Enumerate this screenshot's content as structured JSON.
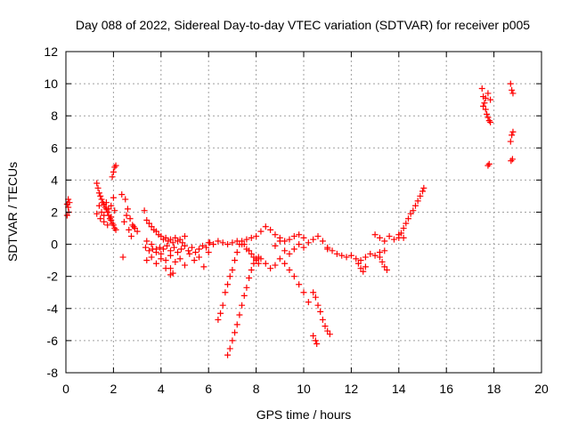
{
  "chart_data": {
    "type": "scatter",
    "title": "Day 088 of 2022, Sidereal Day-to-day VTEC variation (SDTVAR) for receiver p005",
    "xlabel": "GPS time / hours",
    "ylabel": "SDTVAR / TECUs",
    "xlim": [
      0,
      20
    ],
    "ylim": [
      -8,
      12
    ],
    "xticks": [
      0,
      2,
      4,
      6,
      8,
      10,
      12,
      14,
      16,
      18,
      20
    ],
    "yticks": [
      -8,
      -6,
      -4,
      -2,
      0,
      2,
      4,
      6,
      8,
      10,
      12
    ],
    "grid": true,
    "marker": "+",
    "color": "#ff0000",
    "series": [
      {
        "name": "SDTVAR",
        "x": [
          0.05,
          0.1,
          0.15,
          0.05,
          0.1,
          0.12,
          1.3,
          1.35,
          1.4,
          1.45,
          1.5,
          1.55,
          1.6,
          1.65,
          1.7,
          1.75,
          1.8,
          1.85,
          1.9,
          1.95,
          2.0,
          2.05,
          2.1,
          1.4,
          1.5,
          1.6,
          1.7,
          1.8,
          1.9,
          2.0,
          1.3,
          1.45,
          1.6,
          1.75,
          1.9,
          2.05,
          1.95,
          2.0,
          2.05,
          2.1,
          2.35,
          2.5,
          2.6,
          2.7,
          2.8,
          2.9,
          3.0,
          2.45,
          2.55,
          2.65,
          2.75,
          2.85,
          2.4,
          3.3,
          3.4,
          3.5,
          3.6,
          3.7,
          3.8,
          3.9,
          4.0,
          4.1,
          4.2,
          4.3,
          4.4,
          4.5,
          4.6,
          4.7,
          4.8,
          4.9,
          5.0,
          3.35,
          3.5,
          3.65,
          3.8,
          3.95,
          4.1,
          4.25,
          4.4,
          4.55,
          4.7,
          4.85,
          5.0,
          5.15,
          5.3,
          5.45,
          5.6,
          5.75,
          5.9,
          6.05,
          3.4,
          3.6,
          3.8,
          4.0,
          4.2,
          4.4,
          4.6,
          4.8,
          5.0,
          5.2,
          5.4,
          5.6,
          5.8,
          6.0,
          3.4,
          3.6,
          3.8,
          4.0,
          4.2,
          4.4,
          4.5,
          4.4,
          6.0,
          6.2,
          6.4,
          6.6,
          6.8,
          7.0,
          7.2,
          7.4,
          7.6,
          7.8,
          8.0,
          8.2,
          8.4,
          8.6,
          8.8,
          9.0,
          9.2,
          9.4,
          9.6,
          9.8,
          10.0,
          10.2,
          10.4,
          10.6,
          10.8,
          11.0,
          6.4,
          6.5,
          6.6,
          6.7,
          6.8,
          6.9,
          7.0,
          7.1,
          7.2,
          7.3,
          7.4,
          7.5,
          7.6,
          7.7,
          7.8,
          7.9,
          8.0,
          8.1,
          6.8,
          6.9,
          7.0,
          7.1,
          7.2,
          7.3,
          7.4,
          7.5,
          7.6,
          7.7,
          7.8,
          7.9,
          8.0,
          8.1,
          8.2,
          8.4,
          8.6,
          8.8,
          9.0,
          9.2,
          9.4,
          9.6,
          9.8,
          10.0,
          10.2,
          8.8,
          9.0,
          9.2,
          9.4,
          9.6,
          9.8,
          10.0,
          10.4,
          10.5,
          10.6,
          10.7,
          10.8,
          10.9,
          11.0,
          11.1,
          10.4,
          10.5,
          10.55,
          11.0,
          11.2,
          11.4,
          11.6,
          11.8,
          12.0,
          12.2,
          12.4,
          12.6,
          12.8,
          13.0,
          13.2,
          13.4,
          12.3,
          12.4,
          12.5,
          12.6,
          13.0,
          13.2,
          13.4,
          13.6,
          13.8,
          14.0,
          14.2,
          13.2,
          13.3,
          13.4,
          13.5,
          14.0,
          14.1,
          14.2,
          14.3,
          14.4,
          14.5,
          14.6,
          14.7,
          14.8,
          14.9,
          15.0,
          15.05,
          17.5,
          17.55,
          17.6,
          17.65,
          17.7,
          17.75,
          17.8,
          17.85,
          17.55,
          17.65,
          17.75,
          17.85,
          17.8,
          17.75,
          18.7,
          18.75,
          18.8,
          18.7,
          18.75,
          18.8,
          18.72,
          18.78
        ],
        "y": [
          2.5,
          2.8,
          2.6,
          1.8,
          2.3,
          2.0,
          3.8,
          3.5,
          3.2,
          3.0,
          2.8,
          2.6,
          2.5,
          2.3,
          2.2,
          2.0,
          1.8,
          1.6,
          1.5,
          1.3,
          1.2,
          1.0,
          0.9,
          2.4,
          2.0,
          1.8,
          2.6,
          2.2,
          1.7,
          2.9,
          1.9,
          1.6,
          1.4,
          1.2,
          2.4,
          2.1,
          4.2,
          4.5,
          4.8,
          4.9,
          3.1,
          2.8,
          2.2,
          1.6,
          1.2,
          1.0,
          0.8,
          1.4,
          1.8,
          0.9,
          0.5,
          1.1,
          -0.8,
          2.1,
          1.5,
          1.3,
          1.1,
          0.9,
          0.8,
          0.6,
          0.5,
          0.3,
          0.4,
          0.2,
          0.3,
          0.1,
          0.4,
          0.2,
          0.3,
          0.1,
          0.5,
          -0.2,
          -0.4,
          -0.3,
          -0.5,
          -0.2,
          -0.3,
          -0.1,
          -0.4,
          -0.2,
          -0.5,
          -0.3,
          -0.1,
          -0.4,
          -0.2,
          -0.5,
          -0.3,
          -0.1,
          -0.2,
          0.1,
          -1.0,
          -0.8,
          -1.2,
          -0.9,
          -1.5,
          -0.7,
          -1.1,
          -0.9,
          -1.3,
          -0.6,
          -1.0,
          -0.8,
          -1.4,
          -0.5,
          0.2,
          0.0,
          -0.3,
          -0.6,
          -1.0,
          -1.5,
          -1.8,
          -1.9,
          0.1,
          0.0,
          0.2,
          0.1,
          0.0,
          0.1,
          0.2,
          0.0,
          0.3,
          0.4,
          0.5,
          0.8,
          1.1,
          0.9,
          0.6,
          0.4,
          0.2,
          0.3,
          0.5,
          0.6,
          0.4,
          0.1,
          0.3,
          0.5,
          0.2,
          -0.3,
          -4.7,
          -4.3,
          -3.8,
          -3.0,
          -2.5,
          -2.0,
          -1.6,
          -1.0,
          -0.5,
          0.0,
          0.2,
          0.0,
          -0.3,
          -0.4,
          -0.6,
          -0.8,
          -1.0,
          -1.2,
          -6.9,
          -6.5,
          -6.0,
          -5.5,
          -5.0,
          -4.4,
          -3.8,
          -3.2,
          -2.7,
          -2.1,
          -1.6,
          -1.2,
          -0.9,
          -0.8,
          -0.9,
          -1.2,
          -1.5,
          -1.3,
          -0.9,
          -1.2,
          -1.6,
          -2.0,
          -2.5,
          -3.0,
          -3.6,
          -0.1,
          0.2,
          -0.4,
          -0.6,
          -0.3,
          0.0,
          -0.2,
          -3.0,
          -3.3,
          -3.8,
          -4.2,
          -4.7,
          -5.1,
          -5.4,
          -5.6,
          -5.7,
          -6.0,
          -6.2,
          -0.2,
          -0.4,
          -0.6,
          -0.7,
          -0.8,
          -0.7,
          -0.9,
          -1.0,
          -0.8,
          -0.6,
          -0.7,
          -0.5,
          -0.4,
          -1.2,
          -1.5,
          -1.7,
          -1.4,
          0.6,
          0.4,
          0.2,
          0.5,
          0.3,
          0.6,
          0.4,
          -0.8,
          -1.1,
          -1.4,
          -1.6,
          0.4,
          0.7,
          1.0,
          1.3,
          1.6,
          1.9,
          2.1,
          2.4,
          2.7,
          3.0,
          3.3,
          3.5,
          9.7,
          9.2,
          8.8,
          8.4,
          8.1,
          7.9,
          7.7,
          7.6,
          8.6,
          9.1,
          9.4,
          9.0,
          5.0,
          4.9,
          10.0,
          9.6,
          9.4,
          6.4,
          6.8,
          7.0,
          5.2,
          5.3
        ]
      }
    ]
  }
}
